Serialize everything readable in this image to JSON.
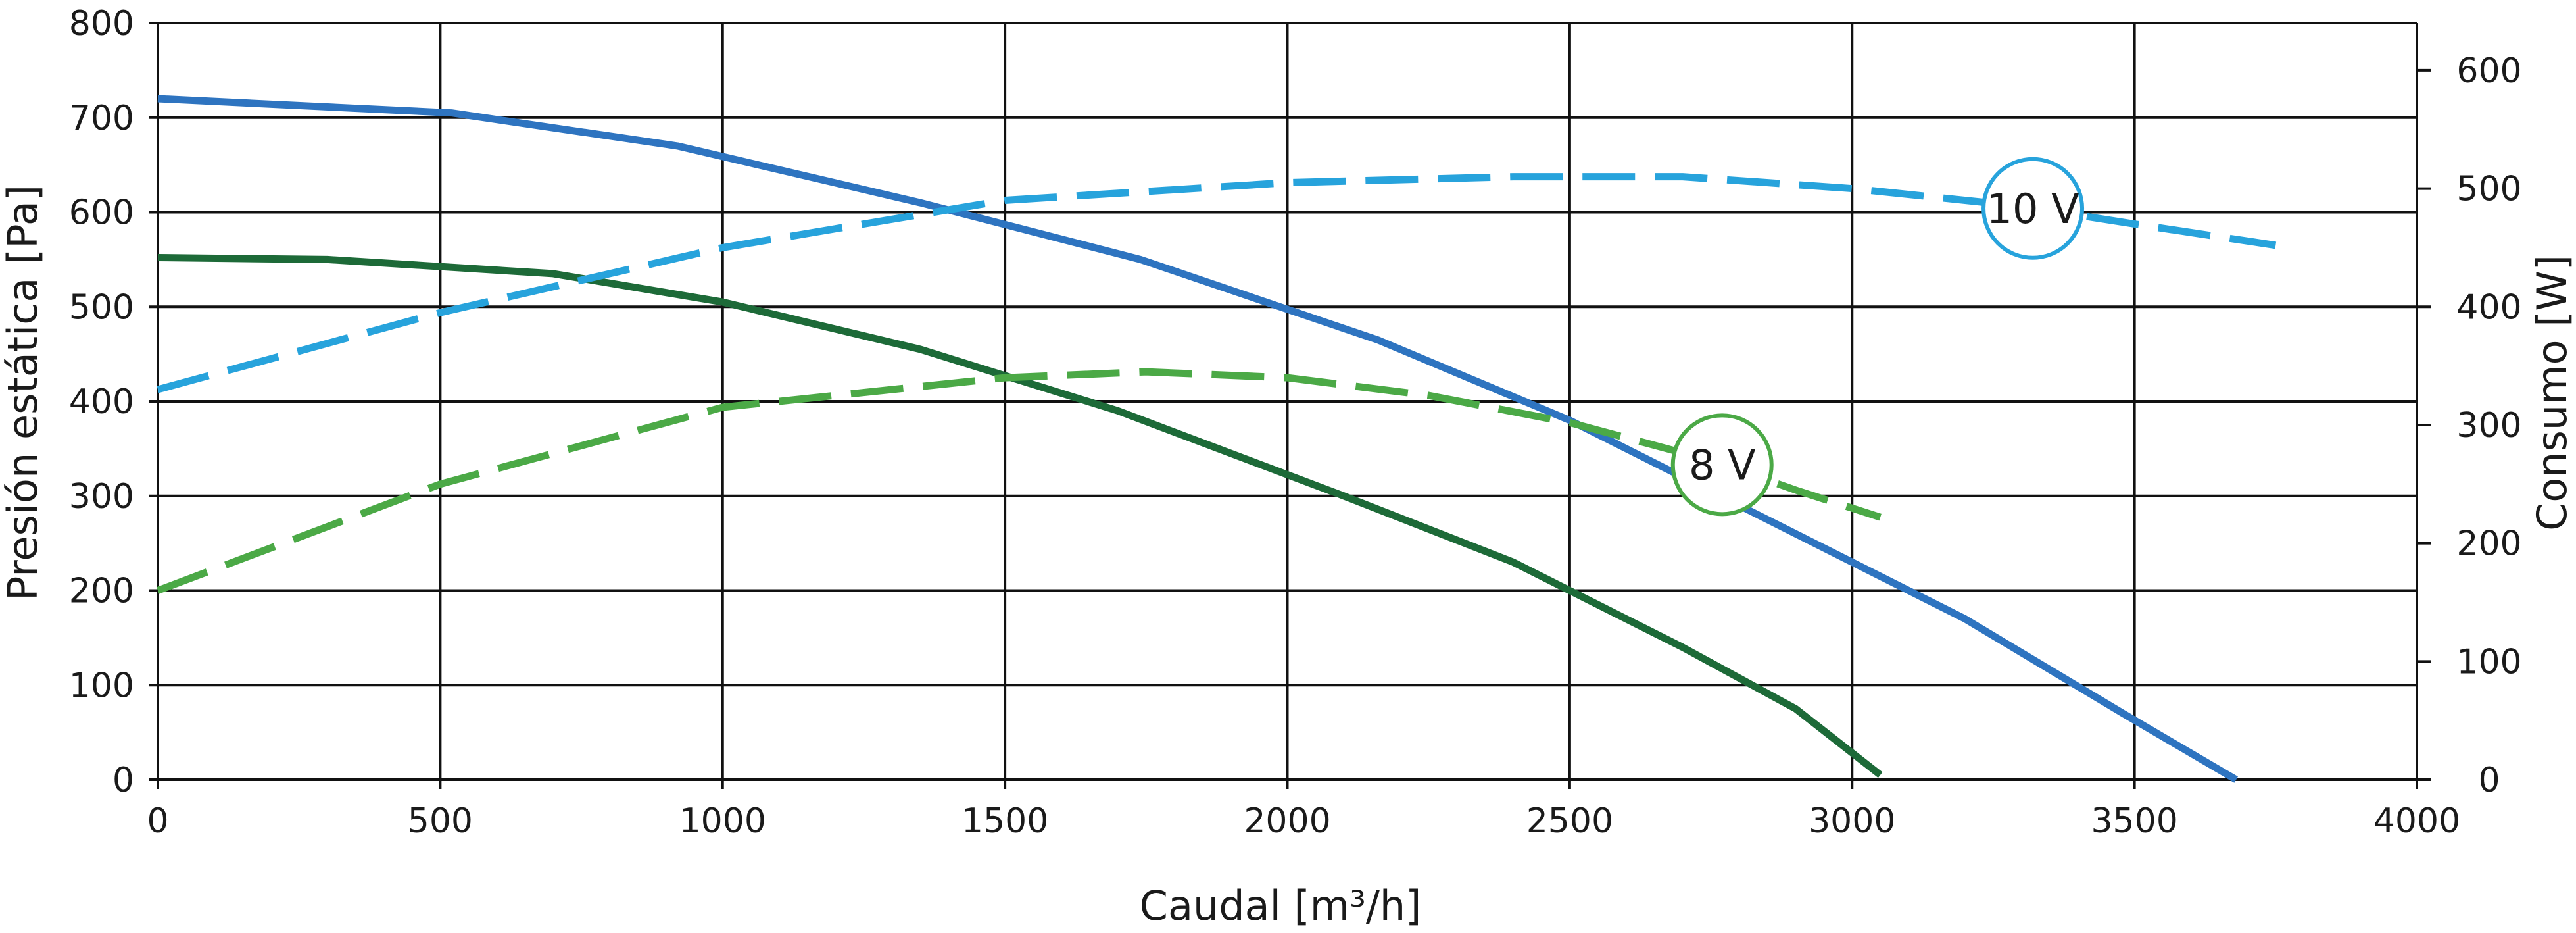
{
  "chart_data": {
    "type": "line",
    "xlabel": "Caudal [m³/h]",
    "ylabel": "Presión estática [Pa]",
    "y2label": "Consumo [W]",
    "xlim": [
      0,
      4000
    ],
    "ylim": [
      0,
      800
    ],
    "y2lim": [
      0,
      640
    ],
    "x_ticks": [
      0,
      500,
      1000,
      1500,
      2000,
      2500,
      3000,
      3500,
      4000
    ],
    "y_ticks": [
      0,
      100,
      200,
      300,
      400,
      500,
      600,
      700,
      800
    ],
    "y2_ticks": [
      0,
      100,
      200,
      300,
      400,
      500,
      600
    ],
    "grid": true,
    "series": [
      {
        "id": "pressure-10v",
        "axis": "left",
        "style": "solid",
        "color": "#2e74c0",
        "x": [
          0,
          520,
          920,
          1350,
          1740,
          2160,
          2500,
          2800,
          3200,
          3480,
          3680
        ],
        "y": [
          720,
          705,
          670,
          610,
          550,
          465,
          380,
          290,
          170,
          70,
          0
        ]
      },
      {
        "id": "pressure-8v",
        "axis": "left",
        "style": "solid",
        "color": "#1d6a38",
        "x": [
          0,
          300,
          700,
          1000,
          1350,
          1700,
          2100,
          2400,
          2700,
          2900,
          3050
        ],
        "y": [
          552,
          550,
          535,
          505,
          455,
          390,
          300,
          230,
          140,
          75,
          5
        ]
      },
      {
        "id": "power-10v",
        "axis": "right",
        "style": "dashed",
        "color": "#27a3dc",
        "x": [
          0,
          500,
          1000,
          1500,
          2000,
          2400,
          2700,
          3000,
          3300,
          3500,
          3750
        ],
        "y": [
          330,
          395,
          450,
          490,
          505,
          510,
          510,
          500,
          485,
          470,
          452
        ]
      },
      {
        "id": "power-8v",
        "axis": "right",
        "style": "dashed",
        "color": "#4ba946",
        "x": [
          0,
          500,
          1000,
          1500,
          1750,
          2000,
          2250,
          2500,
          2750,
          2900,
          3050
        ],
        "y": [
          160,
          250,
          315,
          340,
          345,
          340,
          325,
          302,
          270,
          245,
          222
        ]
      }
    ],
    "annotations": [
      {
        "text": "10 V",
        "x": 3320,
        "y": 604,
        "color": "#27a3dc"
      },
      {
        "text": "8 V",
        "x": 2770,
        "y": 333,
        "color": "#4ba946"
      }
    ]
  }
}
